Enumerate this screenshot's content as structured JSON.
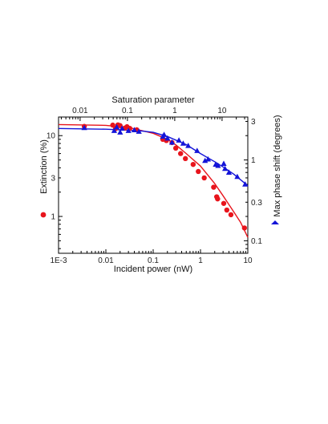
{
  "chart_data": {
    "type": "scatter",
    "x_axis": {
      "label": "Incident power (nW)",
      "scale": "log",
      "range": [
        0.001,
        10
      ],
      "ticks": [
        0.001,
        0.01,
        0.1,
        1,
        10
      ],
      "tick_labels": [
        "1E-3",
        "0.01",
        "0.1",
        "1",
        "10"
      ]
    },
    "x_top_axis": {
      "label": "Saturation parameter",
      "scale": "log",
      "range": [
        0.0035,
        35
      ],
      "ticks": [
        0.01,
        0.1,
        1,
        10
      ],
      "tick_labels": [
        "0.01",
        "0.1",
        "1",
        "10"
      ]
    },
    "y_left_axis": {
      "label": "Extinction (%)",
      "scale": "log",
      "range": [
        0.35,
        17
      ],
      "ticks": [
        1,
        3,
        10
      ],
      "tick_labels": [
        "1",
        "3",
        "10"
      ],
      "color": "#e8141c"
    },
    "y_right_axis": {
      "label": "Max phase shift (degrees)",
      "scale": "log",
      "range": [
        0.07,
        3.4
      ],
      "ticks": [
        0.1,
        0.3,
        1,
        3
      ],
      "tick_labels": [
        "0.1",
        "0.3",
        "1",
        "3"
      ],
      "color": "#1414d8"
    },
    "series": [
      {
        "name": "Extinction",
        "axis": "left",
        "marker": "circle",
        "color": "#e8141c",
        "points": [
          [
            0.0035,
            13.0
          ],
          [
            0.014,
            13.5
          ],
          [
            0.016,
            12.2
          ],
          [
            0.018,
            13.6
          ],
          [
            0.02,
            13.3
          ],
          [
            0.025,
            12.4
          ],
          [
            0.028,
            12.9
          ],
          [
            0.032,
            12.3
          ],
          [
            0.045,
            11.8
          ],
          [
            0.16,
            9.0
          ],
          [
            0.19,
            8.7
          ],
          [
            0.25,
            8.2
          ],
          [
            0.3,
            7.0
          ],
          [
            0.38,
            6.0
          ],
          [
            0.48,
            5.2
          ],
          [
            0.7,
            4.4
          ],
          [
            0.9,
            3.6
          ],
          [
            1.2,
            3.0
          ],
          [
            1.9,
            2.3
          ],
          [
            2.2,
            1.75
          ],
          [
            2.3,
            1.65
          ],
          [
            3.1,
            1.45
          ],
          [
            3.6,
            1.2
          ],
          [
            4.4,
            1.05
          ],
          [
            8.5,
            0.72
          ]
        ],
        "fit": [
          [
            0.001,
            13.7
          ],
          [
            0.01,
            13.4
          ],
          [
            0.03,
            12.6
          ],
          [
            0.1,
            10.7
          ],
          [
            0.2,
            9.0
          ],
          [
            0.3,
            7.7
          ],
          [
            0.5,
            6.0
          ],
          [
            1,
            4.2
          ],
          [
            2,
            2.55
          ],
          [
            3,
            1.8
          ],
          [
            5,
            1.15
          ],
          [
            7,
            0.85
          ],
          [
            10,
            0.55
          ]
        ]
      },
      {
        "name": "Max phase shift",
        "axis": "right",
        "marker": "triangle",
        "color": "#1414d8",
        "points": [
          [
            0.0035,
            2.5
          ],
          [
            0.015,
            2.3
          ],
          [
            0.017,
            2.55
          ],
          [
            0.02,
            2.2
          ],
          [
            0.022,
            2.45
          ],
          [
            0.03,
            2.3
          ],
          [
            0.04,
            2.35
          ],
          [
            0.05,
            2.25
          ],
          [
            0.16,
            1.95
          ],
          [
            0.17,
            2.05
          ],
          [
            0.2,
            1.85
          ],
          [
            0.25,
            1.65
          ],
          [
            0.35,
            1.75
          ],
          [
            0.43,
            1.6
          ],
          [
            0.55,
            1.5
          ],
          [
            0.85,
            1.3
          ],
          [
            1.25,
            0.98
          ],
          [
            1.45,
            1.02
          ],
          [
            2.1,
            0.88
          ],
          [
            2.35,
            0.85
          ],
          [
            3.1,
            0.9
          ],
          [
            3.3,
            0.78
          ],
          [
            4.0,
            0.7
          ],
          [
            6.0,
            0.62
          ],
          [
            8.8,
            0.5
          ]
        ],
        "fit": [
          [
            0.001,
            2.45
          ],
          [
            0.01,
            2.4
          ],
          [
            0.05,
            2.3
          ],
          [
            0.1,
            2.2
          ],
          [
            0.2,
            1.95
          ],
          [
            0.5,
            1.55
          ],
          [
            1,
            1.2
          ],
          [
            2,
            0.95
          ],
          [
            3,
            0.82
          ],
          [
            5,
            0.67
          ],
          [
            7,
            0.57
          ],
          [
            10,
            0.48
          ]
        ]
      }
    ]
  }
}
